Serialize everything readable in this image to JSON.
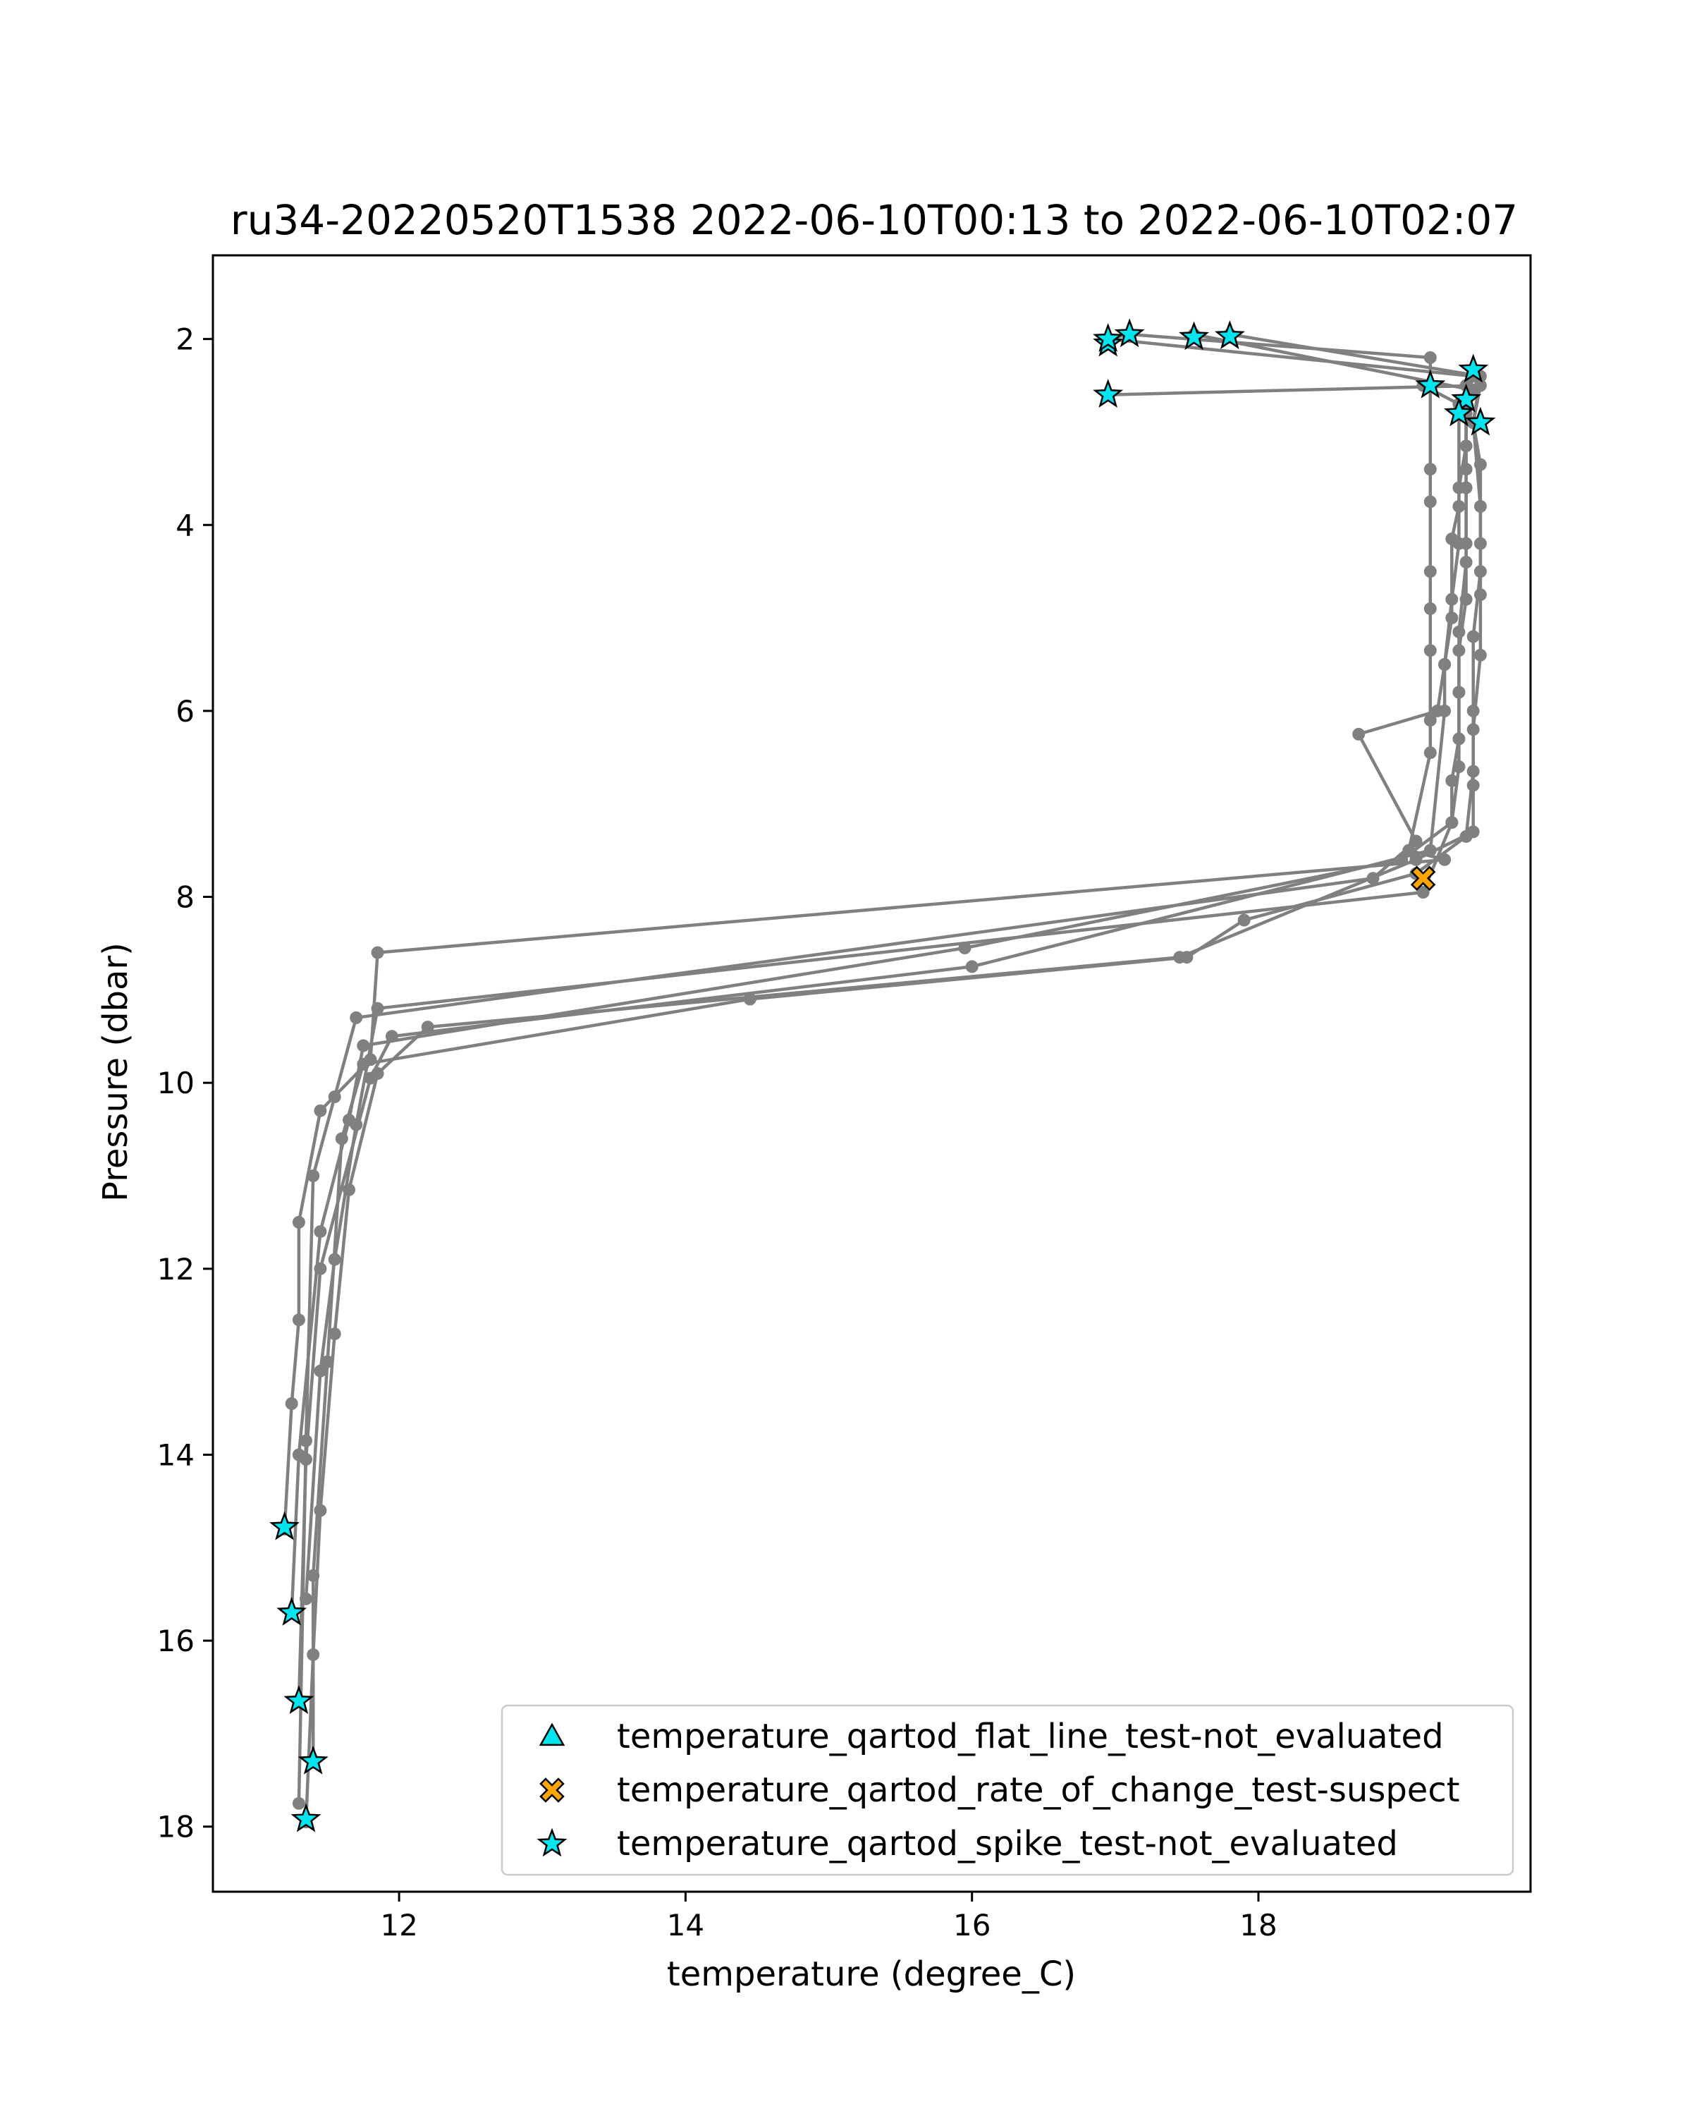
{
  "chart_data": {
    "type": "line",
    "title": "ru34-20220520T1538 2022-06-10T00:13 to 2022-06-10T02:07",
    "xlabel": "temperature (degree_C)",
    "ylabel": "Pressure (dbar)",
    "xlim": [
      10.7,
      19.9
    ],
    "ylim": [
      18.7,
      1.1
    ],
    "y_inverted": true,
    "grid": false,
    "x_ticks": [
      12,
      14,
      16,
      18
    ],
    "y_ticks": [
      2,
      4,
      6,
      8,
      10,
      12,
      14,
      16,
      18
    ],
    "x_tick_labels": [
      "12",
      "14",
      "16",
      "18"
    ],
    "y_tick_labels": [
      "2",
      "4",
      "6",
      "8",
      "10",
      "12",
      "14",
      "16",
      "18"
    ],
    "profile_color": "#808080",
    "profiles": [
      {
        "x": [
          16.95,
          17.1,
          19.2,
          19.2,
          19.2,
          19.2,
          19.2,
          19.2,
          19.2,
          19.2,
          19.05,
          19.3,
          11.85,
          11.8,
          11.45,
          11.3,
          11.3,
          11.25,
          11.2
        ],
        "y": [
          2.0,
          1.95,
          2.2,
          3.4,
          3.75,
          4.5,
          4.9,
          5.35,
          6.1,
          6.45,
          7.5,
          7.6,
          8.6,
          9.75,
          10.3,
          11.5,
          12.55,
          13.45,
          14.8
        ]
      },
      {
        "x": [
          16.95,
          19.5,
          19.45,
          19.45,
          19.45,
          19.45,
          19.4,
          19.4,
          19.4,
          19.35,
          19.35,
          19.0,
          15.95,
          11.75,
          11.65,
          11.45,
          11.3,
          11.25
        ],
        "y": [
          2.0,
          2.4,
          2.7,
          3.4,
          4.2,
          4.8,
          5.35,
          5.8,
          6.3,
          6.75,
          7.2,
          7.6,
          8.55,
          9.6,
          10.4,
          11.6,
          14.0,
          15.7
        ]
      },
      {
        "x": [
          17.55,
          19.5,
          19.45,
          19.45,
          19.4,
          19.4,
          19.35,
          19.3,
          19.3,
          19.2,
          16.0,
          11.95,
          11.8,
          11.45,
          11.35,
          11.3
        ],
        "y": [
          1.95,
          2.55,
          2.8,
          3.15,
          3.6,
          4.2,
          4.8,
          5.5,
          6.0,
          7.5,
          8.75,
          9.5,
          9.95,
          12.0,
          14.05,
          16.65
        ]
      },
      {
        "x": [
          17.8,
          19.55,
          19.5,
          19.55,
          19.55,
          19.5,
          19.5,
          19.5,
          19.45,
          19.1,
          17.9,
          17.5,
          14.45,
          11.75,
          11.6,
          11.5,
          11.4,
          11.4
        ],
        "y": [
          1.95,
          2.4,
          2.9,
          3.8,
          4.5,
          5.2,
          6.0,
          6.65,
          7.35,
          7.75,
          8.25,
          8.65,
          9.1,
          9.8,
          10.6,
          13.0,
          15.3,
          17.3
        ]
      },
      {
        "x": [
          16.95,
          19.55,
          19.5,
          19.55,
          19.55,
          19.55,
          19.55,
          19.5,
          19.5,
          19.5,
          19.1,
          17.45,
          12.2,
          11.85,
          11.65,
          11.55,
          11.45,
          11.4,
          11.35
        ],
        "y": [
          2.6,
          2.5,
          2.9,
          3.35,
          4.2,
          4.75,
          5.4,
          6.2,
          6.8,
          7.3,
          7.6,
          8.65,
          9.4,
          9.9,
          11.15,
          12.7,
          14.6,
          16.15,
          17.95
        ]
      },
      {
        "x": [
          19.15,
          19.4,
          19.4,
          19.35,
          19.35,
          19.3,
          19.25,
          18.7,
          19.1,
          18.8,
          11.7,
          11.55,
          11.4,
          11.35,
          11.3
        ],
        "y": [
          2.5,
          2.7,
          3.8,
          4.15,
          5.0,
          5.5,
          6.0,
          6.25,
          7.4,
          7.8,
          9.3,
          10.15,
          11.0,
          13.85,
          17.75
        ]
      },
      {
        "x": [
          19.45,
          19.45,
          19.45,
          19.4,
          19.4,
          19.4,
          19.35,
          19.15,
          11.85,
          11.7,
          11.55,
          11.45,
          11.35
        ],
        "y": [
          2.5,
          3.6,
          4.4,
          5.15,
          5.8,
          6.6,
          7.2,
          7.95,
          9.2,
          10.45,
          11.9,
          13.1,
          15.55
        ]
      }
    ],
    "flagged": [
      {
        "series": "temperature_qartod_rate_of_change_test-suspect",
        "x": [
          19.15
        ],
        "y": [
          7.8
        ]
      },
      {
        "series": "temperature_qartod_spike_test-not_evaluated",
        "x": [
          16.95,
          17.1,
          16.95,
          17.55,
          17.8,
          19.5,
          19.2,
          19.45,
          19.4,
          19.55,
          16.95,
          11.2,
          11.25,
          11.3,
          11.4,
          11.35
        ],
        "y": [
          2.05,
          1.95,
          2.0,
          1.98,
          1.97,
          2.33,
          2.5,
          2.65,
          2.8,
          2.9,
          2.6,
          14.78,
          15.7,
          16.65,
          17.3,
          17.92
        ]
      }
    ],
    "legend": {
      "placement": "lower right",
      "entries": [
        {
          "label": "temperature_qartod_flat_line_test-not_evaluated",
          "marker": "triangle",
          "color": "#00e5ee"
        },
        {
          "label": "temperature_qartod_rate_of_change_test-suspect",
          "marker": "x",
          "color": "#ffa500"
        },
        {
          "label": "temperature_qartod_spike_test-not_evaluated",
          "marker": "star",
          "color": "#00e5ee"
        }
      ]
    }
  }
}
